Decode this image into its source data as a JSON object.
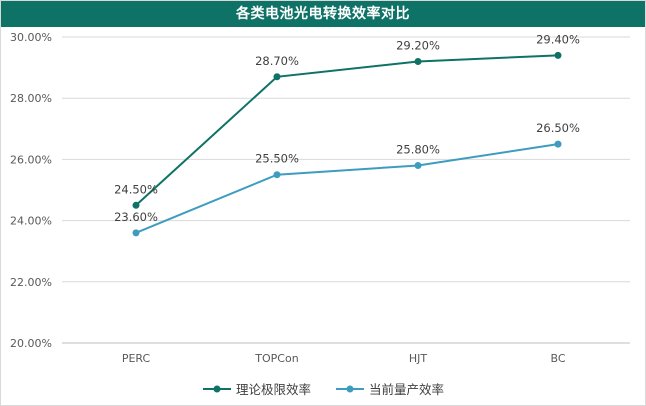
{
  "chart_data": {
    "type": "line",
    "title": "各类电池光电转换效率对比",
    "categories": [
      "PERC",
      "TOPCon",
      "HJT",
      "BC"
    ],
    "series": [
      {
        "name": "理论极限效率",
        "values": [
          24.5,
          28.7,
          29.2,
          29.4
        ],
        "labels": [
          "24.50%",
          "28.70%",
          "29.20%",
          "29.40%"
        ],
        "color": "#0f7266"
      },
      {
        "name": "当前量产效率",
        "values": [
          23.6,
          25.5,
          25.8,
          26.5
        ],
        "labels": [
          "23.60%",
          "25.50%",
          "25.80%",
          "26.50%"
        ],
        "color": "#3e9cbf"
      }
    ],
    "ylim": [
      20,
      30
    ],
    "yticks": [
      "20.00%",
      "22.00%",
      "24.00%",
      "26.00%",
      "28.00%",
      "30.00%"
    ],
    "grid": true,
    "legend_position": "bottom"
  }
}
